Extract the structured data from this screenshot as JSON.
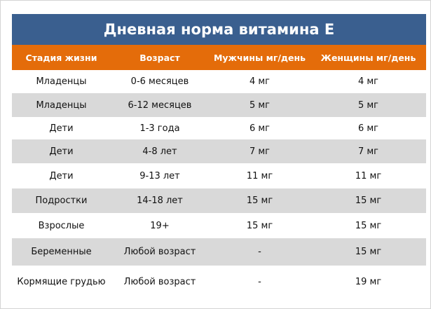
{
  "title": "Дневная норма витамина E",
  "colors": {
    "title_bg": "#3a5f8f",
    "header_bg": "#e46c0a",
    "stripe": "#d9d9d9"
  },
  "headers": [
    "Стадия жизни",
    "Возраст",
    "Мужчины мг/день",
    "Женщины мг/день"
  ],
  "rows": [
    [
      "Младенцы",
      "0-6 месяцев",
      "4 мг",
      "4 мг"
    ],
    [
      "Младенцы",
      "6-12 месяцев",
      "5 мг",
      "5 мг"
    ],
    [
      "Дети",
      "1-3 года",
      "6 мг",
      "6 мг"
    ],
    [
      "Дети",
      "4-8 лет",
      "7 мг",
      "7 мг"
    ],
    [
      "Дети",
      "9-13 лет",
      "11 мг",
      "11 мг"
    ],
    [
      "Подростки",
      "14-18 лет",
      "15 мг",
      "15 мг"
    ],
    [
      "Взрослые",
      "19+",
      "15 мг",
      "15 мг"
    ],
    [
      "Беременные",
      "Любой возраст",
      "-",
      "15 мг"
    ],
    [
      "Кормящие грудью",
      "Любой возраст",
      "-",
      "19 мг"
    ]
  ]
}
